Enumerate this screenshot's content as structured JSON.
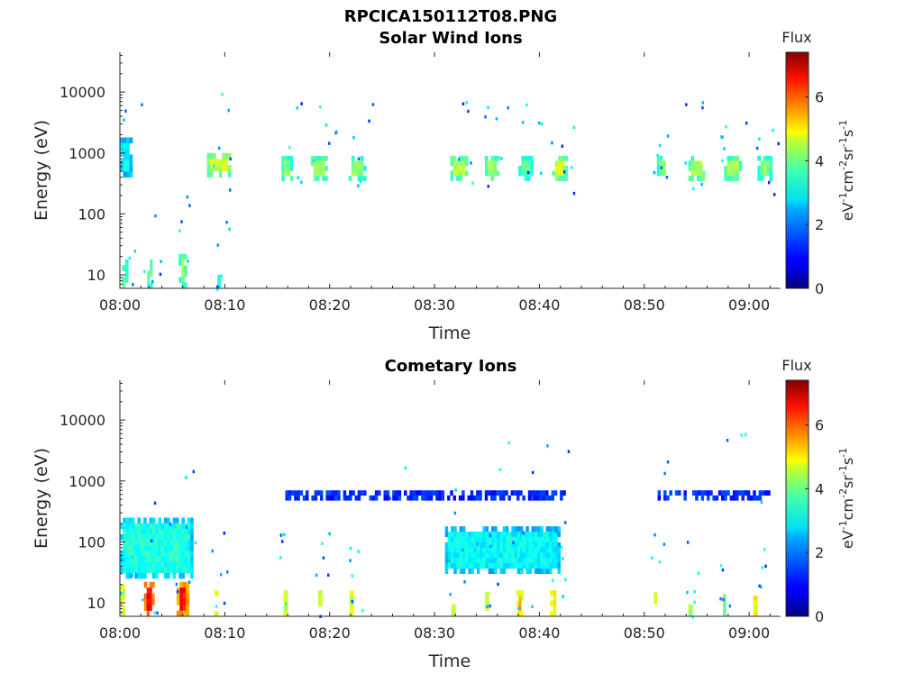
{
  "figure_title": "RPCICA150112T08.PNG",
  "colorbar": {
    "title": "Flux",
    "label": "eV-1cm-2sr-1s-1",
    "ticks": [
      "0",
      "2",
      "4",
      "6"
    ],
    "range": [
      0,
      7.4
    ],
    "colormap": "jet"
  },
  "chart_data": [
    {
      "type": "heatmap",
      "title": "Solar Wind Ions",
      "xlabel": "Time",
      "ylabel": "Energy (eV)",
      "x_ticks": [
        "08:00",
        "08:10",
        "08:20",
        "08:30",
        "08:40",
        "08:50",
        "09:00"
      ],
      "x_range_minutes": [
        0,
        63
      ],
      "y_scale": "log",
      "y_ticks": [
        "10",
        "100",
        "1000",
        "10000"
      ],
      "y_range": [
        6,
        45000
      ],
      "features": [
        {
          "t_start": 0.0,
          "t_end": 1.2,
          "energy_low": 400,
          "energy_high": 1800,
          "flux": 2.8
        },
        {
          "t_start": 8.3,
          "t_end": 10.6,
          "energy_low": 400,
          "energy_high": 1000,
          "flux": 4.4
        },
        {
          "t_start": 15.4,
          "t_end": 16.5,
          "energy_low": 350,
          "energy_high": 900,
          "flux": 3.9
        },
        {
          "t_start": 18.2,
          "t_end": 19.8,
          "energy_low": 350,
          "energy_high": 900,
          "flux": 4.0
        },
        {
          "t_start": 21.8,
          "t_end": 23.5,
          "energy_low": 350,
          "energy_high": 900,
          "flux": 3.8
        },
        {
          "t_start": 31.5,
          "t_end": 33.2,
          "energy_low": 350,
          "energy_high": 900,
          "flux": 4.1
        },
        {
          "t_start": 34.8,
          "t_end": 36.2,
          "energy_low": 350,
          "energy_high": 900,
          "flux": 4.0
        },
        {
          "t_start": 38.0,
          "t_end": 39.4,
          "energy_low": 350,
          "energy_high": 900,
          "flux": 3.6
        },
        {
          "t_start": 41.2,
          "t_end": 42.7,
          "energy_low": 350,
          "energy_high": 900,
          "flux": 4.3
        },
        {
          "t_start": 51.2,
          "t_end": 52.3,
          "energy_low": 350,
          "energy_high": 900,
          "flux": 3.8
        },
        {
          "t_start": 54.2,
          "t_end": 55.8,
          "energy_low": 350,
          "energy_high": 900,
          "flux": 4.1
        },
        {
          "t_start": 57.6,
          "t_end": 59.3,
          "energy_low": 350,
          "energy_high": 900,
          "flux": 4.0
        },
        {
          "t_start": 60.8,
          "t_end": 62.2,
          "energy_low": 350,
          "energy_high": 900,
          "flux": 3.8
        },
        {
          "t_start": 0.2,
          "t_end": 0.8,
          "energy_low": 6,
          "energy_high": 18,
          "flux": 4.1
        },
        {
          "t_start": 2.6,
          "t_end": 3.1,
          "energy_low": 6,
          "energy_high": 18,
          "flux": 4.2
        },
        {
          "t_start": 5.6,
          "t_end": 6.4,
          "energy_low": 6,
          "energy_high": 22,
          "flux": 4.0
        },
        {
          "t_start": 9.3,
          "t_end": 9.6,
          "energy_low": 6,
          "energy_high": 10,
          "flux": 3.5
        }
      ]
    },
    {
      "type": "heatmap",
      "title": "Cometary Ions",
      "xlabel": "Time",
      "ylabel": "Energy (eV)",
      "x_ticks": [
        "08:00",
        "08:10",
        "08:20",
        "08:30",
        "08:40",
        "08:50",
        "09:00"
      ],
      "x_range_minutes": [
        0,
        63
      ],
      "y_scale": "log",
      "y_ticks": [
        "10",
        "100",
        "1000",
        "10000"
      ],
      "y_range": [
        6,
        45000
      ],
      "features": [
        {
          "t_start": 2.3,
          "t_end": 3.3,
          "energy_low": 6,
          "energy_high": 22,
          "flux": 6.8
        },
        {
          "t_start": 5.4,
          "t_end": 6.6,
          "energy_low": 6,
          "energy_high": 22,
          "flux": 6.5
        },
        {
          "t_start": 0.0,
          "t_end": 0.5,
          "energy_low": 6,
          "energy_high": 20,
          "flux": 5.2
        },
        {
          "t_start": 9.0,
          "t_end": 9.4,
          "energy_low": 6,
          "energy_high": 16,
          "flux": 5.4
        },
        {
          "t_start": 15.6,
          "t_end": 16.0,
          "energy_low": 6,
          "energy_high": 16,
          "flux": 5.2
        },
        {
          "t_start": 18.9,
          "t_end": 19.3,
          "energy_low": 6,
          "energy_high": 16,
          "flux": 5.1
        },
        {
          "t_start": 21.9,
          "t_end": 22.3,
          "energy_low": 6,
          "energy_high": 16,
          "flux": 5.3
        },
        {
          "t_start": 31.6,
          "t_end": 32.0,
          "energy_low": 6,
          "energy_high": 15,
          "flux": 5.0
        },
        {
          "t_start": 34.8,
          "t_end": 35.2,
          "energy_low": 6,
          "energy_high": 15,
          "flux": 5.1
        },
        {
          "t_start": 37.8,
          "t_end": 38.5,
          "energy_low": 6,
          "energy_high": 16,
          "flux": 5.4
        },
        {
          "t_start": 41.0,
          "t_end": 41.6,
          "energy_low": 6,
          "energy_high": 16,
          "flux": 5.6
        },
        {
          "t_start": 50.9,
          "t_end": 51.2,
          "energy_low": 6,
          "energy_high": 15,
          "flux": 5.2
        },
        {
          "t_start": 54.2,
          "t_end": 54.6,
          "energy_low": 6,
          "energy_high": 15,
          "flux": 5.0
        },
        {
          "t_start": 57.5,
          "t_end": 57.8,
          "energy_low": 6,
          "energy_high": 14,
          "flux": 4.6
        },
        {
          "t_start": 60.4,
          "t_end": 60.8,
          "energy_low": 6,
          "energy_high": 16,
          "flux": 5.6
        },
        {
          "t_start": 0.0,
          "t_end": 7.0,
          "energy_low": 25,
          "energy_high": 250,
          "flux": 3.0
        },
        {
          "t_start": 31.0,
          "t_end": 42.0,
          "energy_low": 30,
          "energy_high": 180,
          "flux": 2.8
        },
        {
          "t_start": 15.5,
          "t_end": 42.5,
          "energy_low": 480,
          "energy_high": 700,
          "flux": 1.5
        },
        {
          "t_start": 51.0,
          "t_end": 62.0,
          "energy_low": 480,
          "energy_high": 700,
          "flux": 1.5
        }
      ]
    }
  ]
}
